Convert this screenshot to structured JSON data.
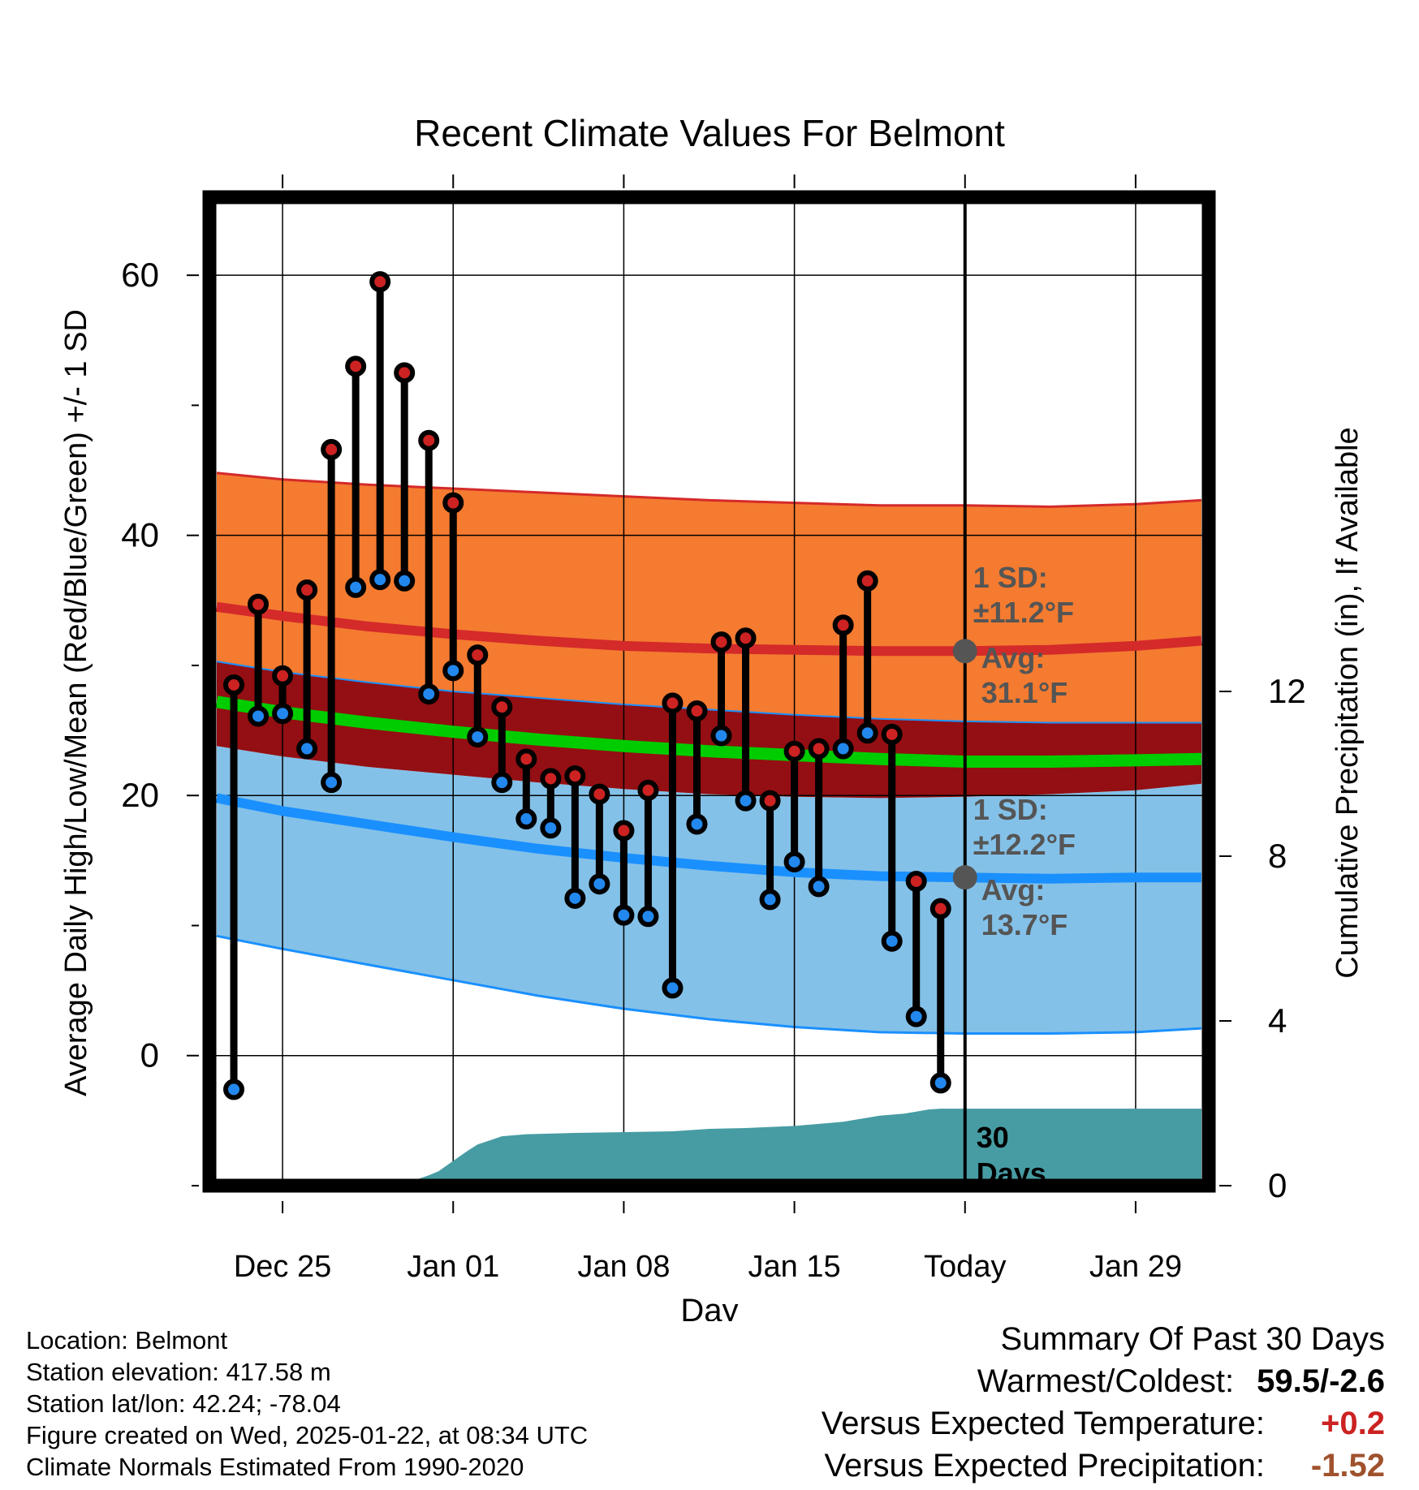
{
  "chart_data": {
    "type": "line",
    "title": "Recent Climate Values For Belmont",
    "xlabel": "Day",
    "ylabel": "Average Daily High/Low/Mean (Red/Blue/Green) +/- 1 SD",
    "y2label": "Cumulative Precipitation (in), If Available",
    "xlim": [
      -3,
      38
    ],
    "ylim": [
      -10,
      66
    ],
    "y2lim": [
      0,
      24
    ],
    "x_ticks": [
      {
        "x": 0,
        "label": "Dec 25"
      },
      {
        "x": 7,
        "label": "Jan 01"
      },
      {
        "x": 14,
        "label": "Jan 08"
      },
      {
        "x": 21,
        "label": "Jan 15"
      },
      {
        "x": 28,
        "label": "Today"
      },
      {
        "x": 35,
        "label": "Jan 29"
      }
    ],
    "y_ticks": [
      0,
      20,
      40,
      60
    ],
    "y_minor_ticks": [
      -10,
      10,
      30,
      50
    ],
    "y2_ticks": [
      0,
      4,
      8,
      12
    ],
    "today_x": 28,
    "normals_x": [
      -2.7,
      0,
      3.5,
      7,
      10.5,
      14,
      17.5,
      21,
      24.5,
      28,
      31.5,
      35,
      37.7
    ],
    "normal_high": [
      34.5,
      33.8,
      33.0,
      32.4,
      31.9,
      31.5,
      31.3,
      31.2,
      31.1,
      31.1,
      31.2,
      31.5,
      31.9
    ],
    "normal_high_upper": [
      44.8,
      44.3,
      43.9,
      43.6,
      43.3,
      43.0,
      42.7,
      42.5,
      42.3,
      42.3,
      42.2,
      42.4,
      42.7
    ],
    "normal_high_lower": [
      30.3,
      29.5,
      28.7,
      28.0,
      27.5,
      27.0,
      26.6,
      26.2,
      25.9,
      25.7,
      25.6,
      25.6,
      25.6
    ],
    "normal_mean": [
      27.2,
      26.4,
      25.6,
      24.9,
      24.3,
      23.8,
      23.4,
      23.1,
      22.8,
      22.6,
      22.6,
      22.7,
      22.8
    ],
    "normal_low": [
      19.8,
      18.8,
      17.8,
      16.8,
      15.9,
      15.2,
      14.6,
      14.1,
      13.8,
      13.7,
      13.6,
      13.7,
      13.7
    ],
    "normal_low_upper": [
      23.8,
      23.0,
      22.2,
      21.6,
      21.0,
      20.5,
      20.1,
      19.9,
      19.8,
      19.9,
      20.1,
      20.4,
      20.9
    ],
    "normal_low_lower": [
      9.2,
      8.2,
      7.0,
      5.8,
      4.6,
      3.6,
      2.8,
      2.2,
      1.8,
      1.7,
      1.7,
      1.8,
      2.1
    ],
    "series": [
      {
        "name": "High",
        "color": "#cc2222",
        "x": [
          -2,
          -1,
          0,
          1,
          2,
          3,
          4,
          5,
          6,
          7,
          8,
          9,
          10,
          11,
          12,
          13,
          14,
          15,
          16,
          17,
          18,
          19,
          20,
          21,
          22,
          23,
          24,
          25,
          26,
          27
        ],
        "values": [
          28.5,
          34.7,
          29.2,
          35.8,
          46.6,
          53.0,
          59.5,
          52.5,
          47.3,
          42.5,
          30.8,
          26.8,
          22.8,
          21.3,
          21.5,
          20.1,
          17.3,
          20.4,
          27.1,
          26.5,
          31.8,
          32.1,
          19.6,
          23.4,
          23.6,
          33.1,
          36.5,
          24.7,
          13.4,
          11.3
        ]
      },
      {
        "name": "Low",
        "color": "#2288ee",
        "x": [
          -2,
          -1,
          0,
          1,
          2,
          3,
          4,
          5,
          6,
          7,
          8,
          9,
          10,
          11,
          12,
          13,
          14,
          15,
          16,
          17,
          18,
          19,
          20,
          21,
          22,
          23,
          24,
          25,
          26,
          27
        ],
        "values": [
          -2.6,
          26.1,
          26.3,
          23.6,
          21.0,
          36.0,
          36.6,
          36.5,
          27.8,
          29.6,
          24.5,
          21.0,
          18.2,
          17.5,
          12.1,
          13.2,
          10.8,
          10.7,
          5.2,
          17.8,
          24.6,
          19.6,
          12.0,
          14.9,
          13.0,
          23.6,
          24.8,
          8.8,
          3.0,
          -2.1
        ]
      }
    ],
    "precip_x": [
      -2,
      1,
      2.5,
      4,
      5.5,
      6,
      6.4,
      7,
      7.6,
      8,
      8.5,
      9,
      10,
      12,
      14,
      16,
      17.5,
      19,
      21,
      22,
      23,
      24,
      24.5,
      25.5,
      26,
      26.5,
      27,
      28,
      30,
      32,
      34,
      36,
      37.7
    ],
    "precip_values": [
      0,
      0,
      0.02,
      0.06,
      0.15,
      0.25,
      0.35,
      0.6,
      0.85,
      1.0,
      1.1,
      1.2,
      1.25,
      1.28,
      1.3,
      1.32,
      1.38,
      1.4,
      1.45,
      1.5,
      1.55,
      1.65,
      1.7,
      1.75,
      1.8,
      1.85,
      1.87,
      1.87,
      1.87,
      1.87,
      1.87,
      1.87,
      1.87
    ],
    "annotations": {
      "high_sd": "1 SD:",
      "high_sd_value": "±11.2°F",
      "high_avg": "Avg:",
      "high_avg_value": "31.1°F",
      "low_sd": "1 SD:",
      "low_sd_value": "±12.2°F",
      "low_avg": "Avg:",
      "low_avg_value": "13.7°F",
      "days_value": "30",
      "days_label": "Days",
      "high_avg_num": 31.1,
      "low_avg_num": 13.7
    },
    "colors": {
      "high_band": "#f47b30",
      "high_line": "#d42a2a",
      "overlap_band": "#930f13",
      "mean_line": "#00cc00",
      "low_band": "#84c1e8",
      "low_line": "#1a90ff",
      "precip": "#479ca3",
      "annotation": "#555555"
    }
  },
  "footer": {
    "location": "Location: Belmont",
    "elevation": "Station elevation: 417.58 m",
    "latlon": "Station lat/lon: 42.24; -78.04",
    "created": "Figure created on Wed, 2025-01-22, at 08:34 UTC",
    "normals": "Climate Normals Estimated From 1990-2020"
  },
  "summary": {
    "title": "Summary Of Past 30 Days",
    "warmest_label": "Warmest/Coldest:",
    "warmest_value": "59.5/-2.6",
    "temp_label": "Versus Expected Temperature:",
    "temp_value": "+0.2",
    "temp_color": "#cc2222",
    "precip_label": "Versus Expected Precipitation:",
    "precip_value": "-1.52",
    "precip_color": "#a0522d"
  }
}
